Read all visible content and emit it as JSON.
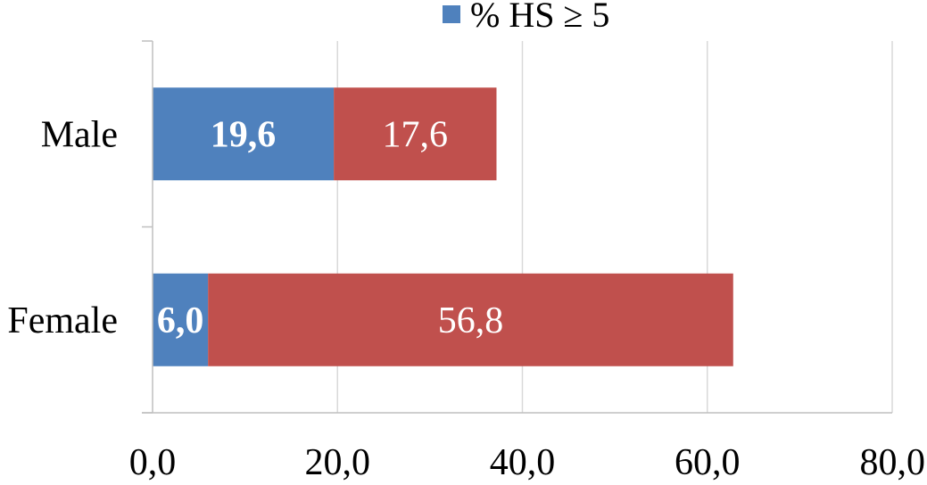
{
  "chart_data": {
    "type": "bar",
    "orientation": "horizontal",
    "stacked": true,
    "categories": [
      "Male",
      "Female"
    ],
    "series": [
      {
        "name": "% HS ≥ 5",
        "values": [
          19.6,
          6.0
        ],
        "labels": [
          "19,6",
          "6,0"
        ],
        "color": "#4f81bd"
      },
      {
        "name": "",
        "values": [
          17.6,
          56.8
        ],
        "labels": [
          "17,6",
          "56,8"
        ],
        "color": "#c0504d"
      }
    ],
    "xlim": [
      0,
      80
    ],
    "xticks": [
      0,
      20,
      40,
      60,
      80
    ],
    "xtick_labels": [
      "0,0",
      "20,0",
      "40,0",
      "60,0",
      "80,0"
    ],
    "grid": true,
    "legend": {
      "position": "top",
      "entries": [
        "% HS ≥ 5"
      ]
    },
    "title": "",
    "xlabel": "",
    "ylabel": ""
  }
}
